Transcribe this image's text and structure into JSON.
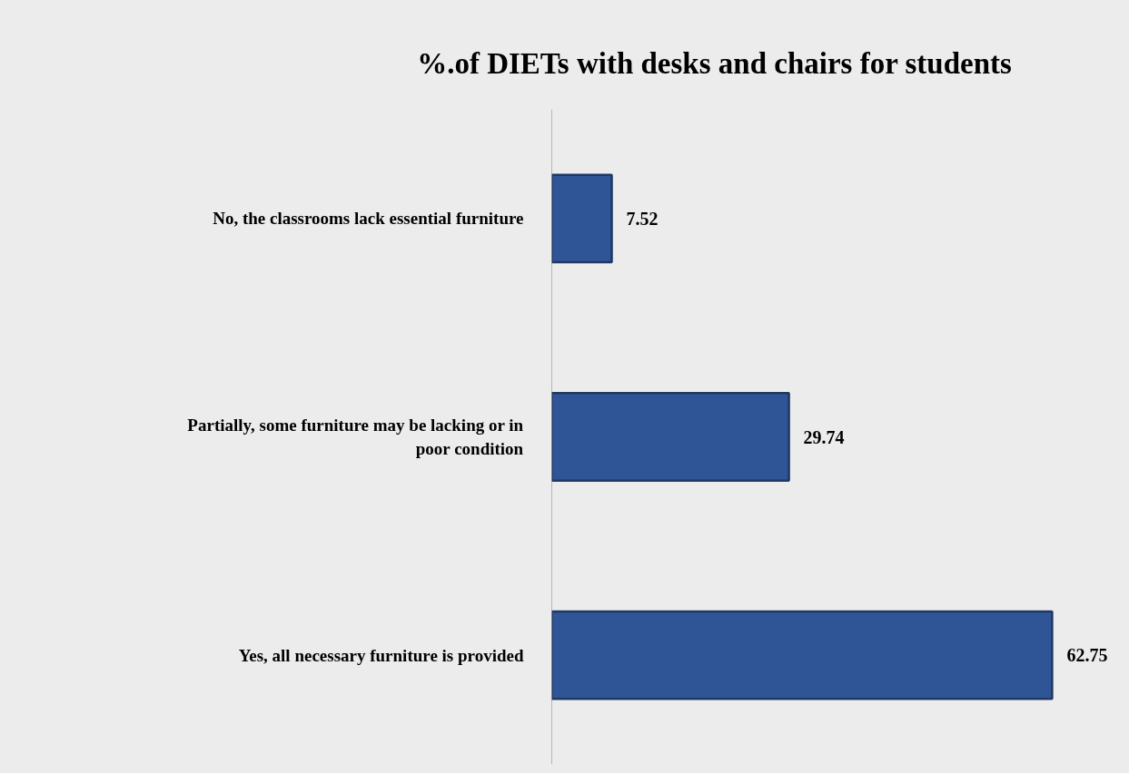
{
  "chart_data": {
    "type": "bar",
    "orientation": "horizontal",
    "title": "%.of DIETs with desks and chairs for students",
    "categories": [
      "No, the classrooms lack essential furniture",
      "Partially, some furniture may be lacking or in poor condition",
      "Yes, all necessary furniture is provided"
    ],
    "values": [
      7.52,
      29.74,
      62.75
    ],
    "color": "#2f5597",
    "data_labels": true,
    "grid": false
  }
}
